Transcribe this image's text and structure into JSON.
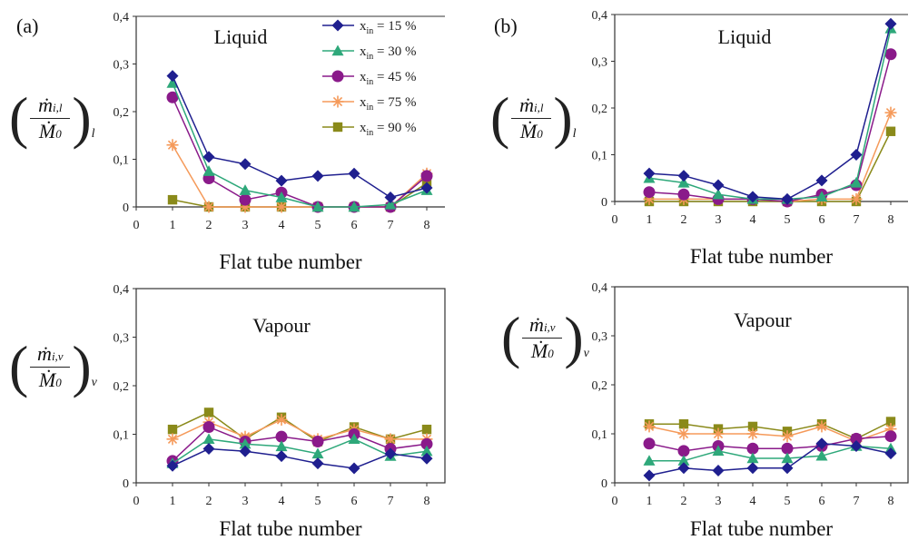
{
  "panel_labels": {
    "a": "(a)",
    "b": "(b)"
  },
  "ylabels": {
    "liquid_a": {
      "num": "ṁ",
      "num_sub": "i,l",
      "den": "Ṁ",
      "den_sub": "0",
      "outer_sub": "l"
    },
    "liquid_b": {
      "num": "ṁ",
      "num_sub": "i,l",
      "den": "Ṁ",
      "den_sub": "0",
      "outer_sub": "l"
    },
    "vapour_a": {
      "num": "ṁ",
      "num_sub": "i,v",
      "den": "Ṁ",
      "den_sub": "0",
      "outer_sub": "v"
    },
    "vapour_b": {
      "num": "ṁ",
      "num_sub": "i,v",
      "den": "Ṁ",
      "den_sub": "0",
      "outer_sub": "v"
    }
  },
  "legend": [
    {
      "label": "x_in = 15 %",
      "main": "x",
      "sub": "in",
      "rest": "= 15 %",
      "color": "#1f1f8f",
      "marker": "diamond"
    },
    {
      "label": "x_in = 30 %",
      "main": "x",
      "sub": "in",
      "rest": "= 30 %",
      "color": "#2ea87a",
      "marker": "triangle"
    },
    {
      "label": "x_in = 45 %",
      "main": "x",
      "sub": "in",
      "rest": "= 45 %",
      "color": "#8a1a8a",
      "marker": "circle"
    },
    {
      "label": "x_in = 75 %",
      "main": "x",
      "sub": "in",
      "rest": "= 75 %",
      "color": "#f59a5a",
      "marker": "star"
    },
    {
      "label": "x_in = 90 %",
      "main": "x",
      "sub": "in",
      "rest": "= 90 %",
      "color": "#8a8a1a",
      "marker": "square"
    }
  ],
  "chart_data": [
    {
      "id": "a_liquid",
      "type": "line",
      "title": "Liquid",
      "xlabel": "Flat tube number",
      "x": [
        1,
        2,
        3,
        4,
        5,
        6,
        7,
        8
      ],
      "xlim": [
        0,
        8.5
      ],
      "ylim": [
        0,
        0.4
      ],
      "xticks": [
        "0",
        "1",
        "2",
        "3",
        "4",
        "5",
        "6",
        "7",
        "8"
      ],
      "yticks": [
        "0",
        "0,1",
        "0,2",
        "0,3",
        "0,4"
      ],
      "grid": false,
      "series": [
        {
          "name": "x_in = 15 %",
          "values": [
            0.275,
            0.105,
            0.09,
            0.055,
            0.065,
            0.07,
            0.02,
            0.04
          ]
        },
        {
          "name": "x_in = 30 %",
          "values": [
            0.26,
            0.075,
            0.035,
            0.02,
            0.0,
            0.0,
            0.005,
            0.035
          ]
        },
        {
          "name": "x_in = 45 %",
          "values": [
            0.23,
            0.06,
            0.015,
            0.03,
            0.0,
            0.0,
            0.0,
            0.065
          ]
        },
        {
          "name": "x_in = 75 %",
          "values": [
            0.13,
            0.0,
            0.0,
            0.0,
            0.0,
            0.0,
            0.0,
            0.07
          ]
        },
        {
          "name": "x_in = 90 %",
          "values": [
            0.015,
            0.0,
            0.0,
            0.0,
            0.0,
            0.0,
            0.0,
            0.05
          ]
        }
      ]
    },
    {
      "id": "b_liquid",
      "type": "line",
      "title": "Liquid",
      "xlabel": "Flat tube number",
      "x": [
        1,
        2,
        3,
        4,
        5,
        6,
        7,
        8
      ],
      "xlim": [
        0,
        8.5
      ],
      "ylim": [
        0,
        0.4
      ],
      "xticks": [
        "0",
        "1",
        "2",
        "3",
        "4",
        "5",
        "6",
        "7",
        "8"
      ],
      "yticks": [
        "0",
        "0,1",
        "0,2",
        "0,3",
        "0,4"
      ],
      "grid": false,
      "series": [
        {
          "name": "x_in = 15 %",
          "values": [
            0.06,
            0.055,
            0.035,
            0.01,
            0.005,
            0.045,
            0.1,
            0.38
          ]
        },
        {
          "name": "x_in = 30 %",
          "values": [
            0.05,
            0.04,
            0.015,
            0.005,
            0.005,
            0.01,
            0.04,
            0.37
          ]
        },
        {
          "name": "x_in = 45 %",
          "values": [
            0.02,
            0.015,
            0.005,
            0.005,
            0.0,
            0.015,
            0.035,
            0.315
          ]
        },
        {
          "name": "x_in = 75 %",
          "values": [
            0.005,
            0.005,
            0.005,
            0.005,
            0.0,
            0.005,
            0.005,
            0.19
          ]
        },
        {
          "name": "x_in = 90 %",
          "values": [
            0.0,
            0.0,
            0.0,
            0.0,
            0.0,
            0.0,
            0.0,
            0.15
          ]
        }
      ]
    },
    {
      "id": "a_vapour",
      "type": "line",
      "title": "Vapour",
      "xlabel": "Flat tube number",
      "x": [
        1,
        2,
        3,
        4,
        5,
        6,
        7,
        8
      ],
      "xlim": [
        0,
        8.5
      ],
      "ylim": [
        0,
        0.4
      ],
      "xticks": [
        "0",
        "1",
        "2",
        "3",
        "4",
        "5",
        "6",
        "7",
        "8"
      ],
      "yticks": [
        "0",
        "0,1",
        "0,2",
        "0,3",
        "0,4"
      ],
      "grid": false,
      "series": [
        {
          "name": "x_in = 15 %",
          "values": [
            0.035,
            0.07,
            0.065,
            0.055,
            0.04,
            0.03,
            0.06,
            0.05
          ]
        },
        {
          "name": "x_in = 30 %",
          "values": [
            0.04,
            0.09,
            0.08,
            0.075,
            0.06,
            0.09,
            0.055,
            0.065
          ]
        },
        {
          "name": "x_in = 45 %",
          "values": [
            0.045,
            0.115,
            0.085,
            0.095,
            0.085,
            0.1,
            0.07,
            0.08
          ]
        },
        {
          "name": "x_in = 75 %",
          "values": [
            0.09,
            0.125,
            0.095,
            0.13,
            0.09,
            0.11,
            0.09,
            0.09
          ]
        },
        {
          "name": "x_in = 90 %",
          "values": [
            0.11,
            0.145,
            0.09,
            0.135,
            0.085,
            0.115,
            0.09,
            0.11
          ]
        }
      ]
    },
    {
      "id": "b_vapour",
      "type": "line",
      "title": "Vapour",
      "xlabel": "Flat tube number",
      "x": [
        1,
        2,
        3,
        4,
        5,
        6,
        7,
        8
      ],
      "xlim": [
        0,
        8.5
      ],
      "ylim": [
        0,
        0.4
      ],
      "xticks": [
        "0",
        "1",
        "2",
        "3",
        "4",
        "5",
        "6",
        "7",
        "8"
      ],
      "yticks": [
        "0",
        "0,1",
        "0,2",
        "0,3",
        "0,4"
      ],
      "grid": false,
      "series": [
        {
          "name": "x_in = 15 %",
          "values": [
            0.015,
            0.03,
            0.025,
            0.03,
            0.03,
            0.08,
            0.075,
            0.06
          ]
        },
        {
          "name": "x_in = 30 %",
          "values": [
            0.045,
            0.045,
            0.065,
            0.05,
            0.05,
            0.055,
            0.075,
            0.07
          ]
        },
        {
          "name": "x_in = 45 %",
          "values": [
            0.08,
            0.065,
            0.075,
            0.07,
            0.07,
            0.075,
            0.09,
            0.095
          ]
        },
        {
          "name": "x_in = 75 %",
          "values": [
            0.115,
            0.1,
            0.1,
            0.1,
            0.095,
            0.115,
            0.085,
            0.11
          ]
        },
        {
          "name": "x_in = 90 %",
          "values": [
            0.12,
            0.12,
            0.11,
            0.115,
            0.105,
            0.12,
            0.09,
            0.125
          ]
        }
      ]
    }
  ]
}
